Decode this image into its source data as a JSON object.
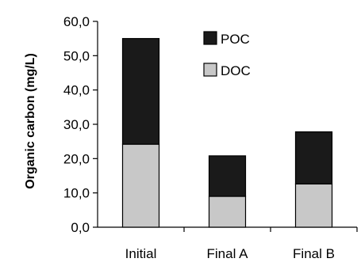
{
  "chart_data": {
    "type": "bar",
    "stacked": true,
    "title": "",
    "xlabel": "",
    "ylabel": "Organic carbon (mg/L)",
    "categories": [
      "Initial",
      "Final A",
      "Final B"
    ],
    "series": [
      {
        "name": "DOC",
        "values": [
          24.2,
          9.0,
          12.6
        ],
        "color": "#c8c8c8"
      },
      {
        "name": "POC",
        "values": [
          30.8,
          11.8,
          15.2
        ],
        "color": "#1a1a1a"
      }
    ],
    "ylim": [
      0,
      60
    ],
    "yticks": [
      "0,0",
      "10,0",
      "20,0",
      "30,0",
      "40,0",
      "50,0",
      "60,0"
    ],
    "grid": false,
    "legend": {
      "placement": "top-center",
      "entries": [
        "POC",
        "DOC"
      ]
    }
  }
}
